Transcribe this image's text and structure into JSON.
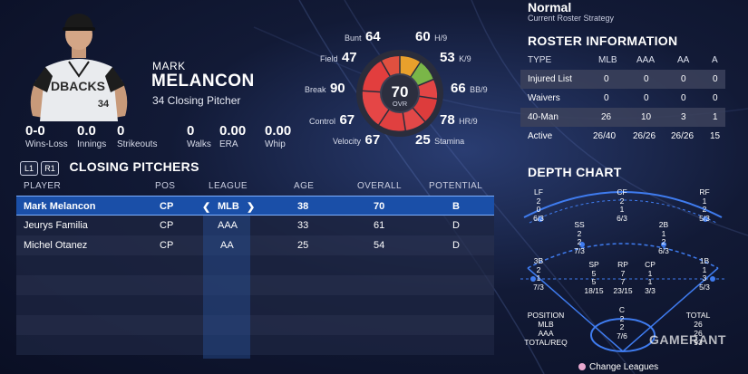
{
  "player": {
    "first_name": "MARK",
    "last_name": "MELANCON",
    "number_position": "34  Closing Pitcher",
    "jersey_text": "DBACKS",
    "jersey_number": "34"
  },
  "stats": [
    {
      "value": "0-0",
      "label": "Wins-Loss"
    },
    {
      "value": "0.0",
      "label": "Innings"
    },
    {
      "value": "0",
      "label": "Strikeouts"
    },
    {
      "value": "0",
      "label": "Walks"
    },
    {
      "value": "0.00",
      "label": "ERA"
    },
    {
      "value": "0.00",
      "label": "Whip"
    }
  ],
  "ratings": {
    "ovr": "70",
    "ovr_label": "OVR",
    "bunt": {
      "value": "64",
      "label": "Bunt"
    },
    "field": {
      "value": "47",
      "label": "Field"
    },
    "break": {
      "value": "90",
      "label": "Break"
    },
    "control": {
      "value": "67",
      "label": "Control"
    },
    "velocity": {
      "value": "67",
      "label": "Velocity"
    },
    "h9": {
      "value": "60",
      "label": "H/9"
    },
    "k9": {
      "value": "53",
      "label": "K/9"
    },
    "bb9": {
      "value": "66",
      "label": "BB/9"
    },
    "hr9": {
      "value": "78",
      "label": "HR/9"
    },
    "stamina": {
      "value": "25",
      "label": "Stamina"
    }
  },
  "list": {
    "left_button": "L1",
    "right_button": "R1",
    "title": "CLOSING PITCHERS",
    "columns": [
      "PLAYER",
      "POS",
      "LEAGUE",
      "AGE",
      "OVERALL",
      "POTENTIAL"
    ],
    "rows": [
      {
        "player": "Mark Melancon",
        "pos": "CP",
        "league": "MLB",
        "age": "38",
        "overall": "70",
        "potential": "B"
      },
      {
        "player": "Jeurys Familia",
        "pos": "CP",
        "league": "AAA",
        "age": "33",
        "overall": "61",
        "potential": "D"
      },
      {
        "player": "Michel Otanez",
        "pos": "CP",
        "league": "AA",
        "age": "25",
        "overall": "54",
        "potential": "D"
      }
    ],
    "league_arrow_left": "❮",
    "league_arrow_right": "❯"
  },
  "strategy": {
    "title": "Normal",
    "subtitle": "Current Roster Strategy"
  },
  "roster_info": {
    "title": "ROSTER INFORMATION",
    "columns": [
      "TYPE",
      "MLB",
      "AAA",
      "AA",
      "A"
    ],
    "rows": [
      {
        "type": "Injured List",
        "mlb": "0",
        "aaa": "0",
        "aa": "0",
        "a": "0"
      },
      {
        "type": "Waivers",
        "mlb": "0",
        "aaa": "0",
        "aa": "0",
        "a": "0"
      },
      {
        "type": "40-Man",
        "mlb": "26",
        "aaa": "10",
        "aa": "3",
        "a": "1"
      },
      {
        "type": "Active",
        "mlb": "26/40",
        "aaa": "26/26",
        "aa": "26/26",
        "a": "15"
      }
    ]
  },
  "depth_chart": {
    "title": "DEPTH CHART",
    "positions": {
      "lf": {
        "label": "LF",
        "a": "2",
        "b": "0",
        "c": "6/3"
      },
      "cf": {
        "label": "CF",
        "a": "2",
        "b": "1",
        "c": "6/3"
      },
      "rf": {
        "label": "RF",
        "a": "1",
        "b": "2",
        "c": "5/3"
      },
      "ss": {
        "label": "SS",
        "a": "2",
        "b": "2",
        "c": "7/3"
      },
      "2b": {
        "label": "2B",
        "a": "1",
        "b": "2",
        "c": "6/3"
      },
      "3b": {
        "label": "3B",
        "a": "2",
        "b": "1",
        "c": "7/3"
      },
      "sp": {
        "label": "SP",
        "a": "5",
        "b": "5",
        "c": "18/15"
      },
      "rp": {
        "label": "RP",
        "a": "7",
        "b": "7",
        "c": "23/15"
      },
      "cp": {
        "label": "CP",
        "a": "1",
        "b": "1",
        "c": "3/3"
      },
      "1b": {
        "label": "1B",
        "a": "1",
        "b": "3",
        "c": "5/3"
      },
      "c": {
        "label": "C",
        "a": "2",
        "b": "2",
        "c": "7/6"
      }
    },
    "legend_left": [
      "POSITION",
      "MLB",
      "AAA",
      "TOTAL/REQ"
    ],
    "legend_right": [
      "TOTAL",
      "26",
      "26",
      "93"
    ]
  },
  "watermark": "GAMERANT",
  "footer": {
    "change_leagues": "Change Leagues"
  }
}
